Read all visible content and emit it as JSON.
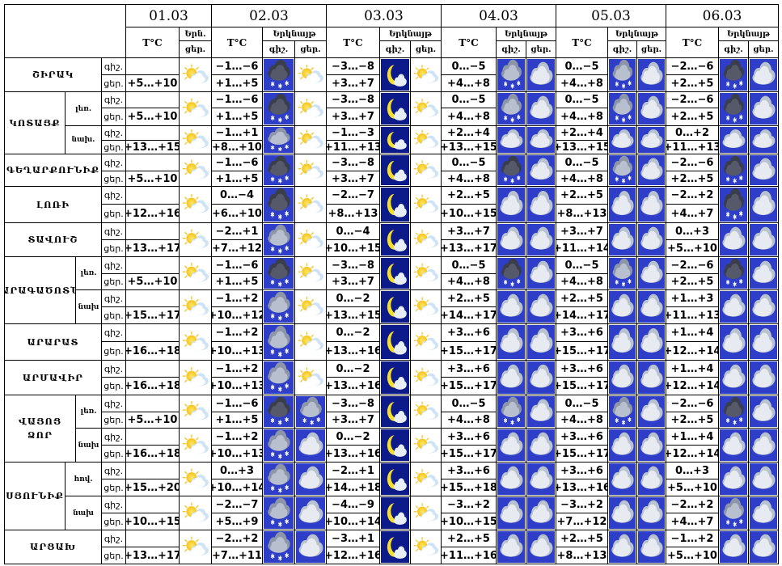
{
  "header": {
    "dates": [
      "01.03",
      "02.03",
      "03.03",
      "04.03",
      "05.03",
      "06.03"
    ],
    "temp_label": "T°C",
    "day0_cloud_label": "Երն.",
    "day0_sub_label": "ցեր.",
    "cloud_label": "Երկնայթ",
    "night_label": "գիշ.",
    "day_label": "ցեր."
  },
  "colors": {
    "border": "#000000",
    "icon_bg": "#2f3ec9",
    "night_bg": "#0d1a8a",
    "moon": "#f5df2a",
    "sun": "#f6c21a"
  },
  "icon_legend": {
    "sun": "sun-cloud-icon",
    "moon": "moon-cloud-icon",
    "dark": "dark-cloud-snow-icon",
    "light": "light-cloud-snow-icon",
    "cloud": "cloud-icon"
  },
  "rows": [
    {
      "region": "ՇԻՐԱԿ",
      "sub": "",
      "n": "գիշ.",
      "d": "ցեր.",
      "t": [
        "+5…+10",
        "−1…−6 | +1…+5",
        "−3…−8 | +3…+7",
        "0…−5 | +4…+8",
        "0…−5 | +4…+8",
        "−2…−6 | +2…+5"
      ],
      "i": [
        "sun",
        "dark",
        "sun",
        "moon",
        "sun",
        "light",
        "cloud",
        "light",
        "cloud",
        "dark",
        "cloud"
      ]
    },
    {
      "region": "ԿՈՏԱՅՔ",
      "sub": "լեռ.",
      "n": "գիշ.",
      "d": "ցեր.",
      "t": [
        "+5…+10",
        "−1…−6 | +1…+5",
        "−3…−8 | +3…+7",
        "0…−5 | +4…+8",
        "0…−5 | +4…+8",
        "−2…−6 | +2…+5"
      ],
      "i": [
        "sun",
        "dark",
        "sun",
        "moon",
        "sun",
        "light",
        "cloud",
        "light",
        "cloud",
        "dark",
        "cloud"
      ]
    },
    {
      "region": "",
      "sub": "նախ.",
      "n": "գիշ.",
      "d": "ցեր.",
      "t": [
        "+13…+15",
        "−1…+1 | +8…+10",
        "−1…−3 | +11…+13",
        "+2…+4 | +13…+15",
        "+2…+4 | +13…+15",
        "0…+2 | +11…+13"
      ],
      "i": [
        "sun",
        "light",
        "sun",
        "moon",
        "sun",
        "cloud",
        "cloud",
        "cloud",
        "cloud",
        "cloud",
        "cloud"
      ]
    },
    {
      "region": "ԳԵՂԱՐՔՈՒՆԻՔ",
      "sub": "",
      "n": "գիշ.",
      "d": "ցեր.",
      "t": [
        "+5…+10",
        "−1…−6 | +1…+5",
        "−3…−8 | +3…+7",
        "0…−5 | +4…+8",
        "0…−5 | +4…+8",
        "−2…−6 | +2…+5"
      ],
      "i": [
        "sun",
        "dark",
        "sun",
        "moon",
        "sun",
        "dark",
        "cloud",
        "light",
        "cloud",
        "dark",
        "cloud"
      ]
    },
    {
      "region": "ԼՈՌԻ",
      "sub": "",
      "n": "գիշ.",
      "d": "ցեր.",
      "t": [
        "+12…+16",
        "0…−4 | +6…+10",
        "−2…−7 | +8…+13",
        "+2…+5 | +10…+15",
        "+2…+5 | +8…+13",
        "−2…+2 | +4…+7"
      ],
      "i": [
        "sun",
        "dark",
        "sun",
        "moon",
        "sun",
        "cloud",
        "cloud",
        "cloud",
        "cloud",
        "dark",
        "cloud"
      ]
    },
    {
      "region": "ՏԱՎՈՒՇ",
      "sub": "",
      "n": "գիշ.",
      "d": "ցեր.",
      "t": [
        "+13…+17",
        "−2…+1 | +7…+12",
        "0…−4 | +10…+15",
        "+3…+7 | +13…+17",
        "+3…+7 | +11…+14",
        "0…+3 | +5…+10"
      ],
      "i": [
        "sun",
        "light",
        "sun",
        "moon",
        "sun",
        "cloud",
        "cloud",
        "cloud",
        "cloud",
        "cloud",
        "cloud"
      ]
    },
    {
      "region": "ԱՐԱԳԱԾՈՏՆ",
      "sub": "լեռ.",
      "n": "գիշ.",
      "d": "ցեր.",
      "t": [
        "+5…+10",
        "−1…−6 | +1…+5",
        "−3…−8 | +3…+7",
        "0…−5 | +4…+8",
        "0…−5 | +4…+8",
        "−2…−6 | +2…+5"
      ],
      "i": [
        "sun",
        "dark",
        "sun",
        "moon",
        "sun",
        "dark",
        "cloud",
        "light",
        "cloud",
        "dark",
        "cloud"
      ]
    },
    {
      "region": "",
      "sub": "նախ",
      "n": "գիշ.",
      "d": "ցեր.",
      "t": [
        "+15…+17",
        "−1…+2 | +10…+12",
        "0…−2 | +13…+15",
        "+2…+5 | +14…+17",
        "+2…+5 | +14…+17",
        "+1…+3 | +11…+13"
      ],
      "i": [
        "sun",
        "light",
        "sun",
        "moon",
        "sun",
        "cloud",
        "cloud",
        "cloud",
        "cloud",
        "cloud",
        "cloud"
      ]
    },
    {
      "region": "ԱՐԱՐԱՏ",
      "sub": "",
      "n": "գիշ.",
      "d": "ցեր.",
      "t": [
        "+16…+18",
        "−1…+2 | +10…+13",
        "0…−2 | +13…+16",
        "+3…+6 | +15…+17",
        "+3…+6 | +15…+17",
        "+1…+4 | +12…+14"
      ],
      "i": [
        "sun",
        "light",
        "sun",
        "moon",
        "sun",
        "cloud",
        "cloud",
        "cloud",
        "cloud",
        "cloud",
        "cloud"
      ]
    },
    {
      "region": "ԱՐՄԱՎԻՐ",
      "sub": "",
      "n": "գիշ.",
      "d": "ցեր.",
      "t": [
        "+16…+18",
        "−1…+2 | +10…+13",
        "0…−2 | +13…+16",
        "+3…+6 | +15…+17",
        "+3…+6 | +15…+17",
        "+1…+4 | +12…+14"
      ],
      "i": [
        "sun",
        "light",
        "sun",
        "moon",
        "sun",
        "cloud",
        "cloud",
        "cloud",
        "cloud",
        "cloud",
        "cloud"
      ]
    },
    {
      "region": "ՎԱՅՈՑ ՁՈՐ",
      "sub": "լեռ.",
      "n": "գիշ.",
      "d": "ցեր.",
      "t": [
        "+5…+10",
        "−1…−6 | +1…+5",
        "−3…−8 | +3…+7",
        "0…−5 | +4…+8",
        "0…−5 | +4…+8",
        "−2…−6 | +2…+5"
      ],
      "i": [
        "sun",
        "dark",
        "light",
        "moon",
        "sun",
        "light",
        "cloud",
        "light",
        "cloud",
        "dark",
        "cloud"
      ]
    },
    {
      "region": "",
      "sub": "նախ",
      "n": "գիշ.",
      "d": "ցեր.",
      "t": [
        "+16…+18",
        "−1…+2 | +10…+13",
        "0…−2 | +13…+16",
        "+3…+6 | +15…+17",
        "+3…+6 | +15…+17",
        "+1…+4 | +12…+14"
      ],
      "i": [
        "sun",
        "light",
        "cloud",
        "moon",
        "sun",
        "cloud",
        "cloud",
        "cloud",
        "cloud",
        "cloud",
        "cloud"
      ]
    },
    {
      "region": "ՍՅՈՒՆԻՔ",
      "sub": "հով.",
      "n": "գիշ.",
      "d": "ցեր.",
      "t": [
        "+15…+20",
        "0…+3 | +10…+14",
        "−2…+1 | +14…+18",
        "+3…+6 | +15…+18",
        "+3…+6 | +13…+16",
        "0…+3 | +5…+10"
      ],
      "i": [
        "sun",
        "light",
        "cloud",
        "moon",
        "sun",
        "cloud",
        "cloud",
        "cloud",
        "cloud",
        "cloud",
        "cloud"
      ]
    },
    {
      "region": "",
      "sub": "նախ",
      "n": "գիշ.",
      "d": "ցեր.",
      "t": [
        "+10…+15",
        "−2…−7 | +5…+9",
        "−4…−9 | +10…+14",
        "−3…+2 | +10…+15",
        "−3…+2 | +7…+12",
        "−2…+2 | +4…+7"
      ],
      "i": [
        "sun",
        "light",
        "cloud",
        "moon",
        "sun",
        "cloud",
        "cloud",
        "cloud",
        "cloud",
        "light",
        "cloud"
      ]
    },
    {
      "region": "ԱՐՑԱԽ",
      "sub": "",
      "n": "գիշ.",
      "d": "ցեր.",
      "t": [
        "+13…+17",
        "−2…+2 | +7…+11",
        "−3…+1 | +12…+16",
        "+2…+5 | +11…+16",
        "+2…+5 | +8…+13",
        "−1…+2 | +5…+10"
      ],
      "i": [
        "sun",
        "light",
        "cloud",
        "moon",
        "sun",
        "cloud",
        "cloud",
        "cloud",
        "cloud",
        "cloud",
        "cloud"
      ]
    }
  ]
}
